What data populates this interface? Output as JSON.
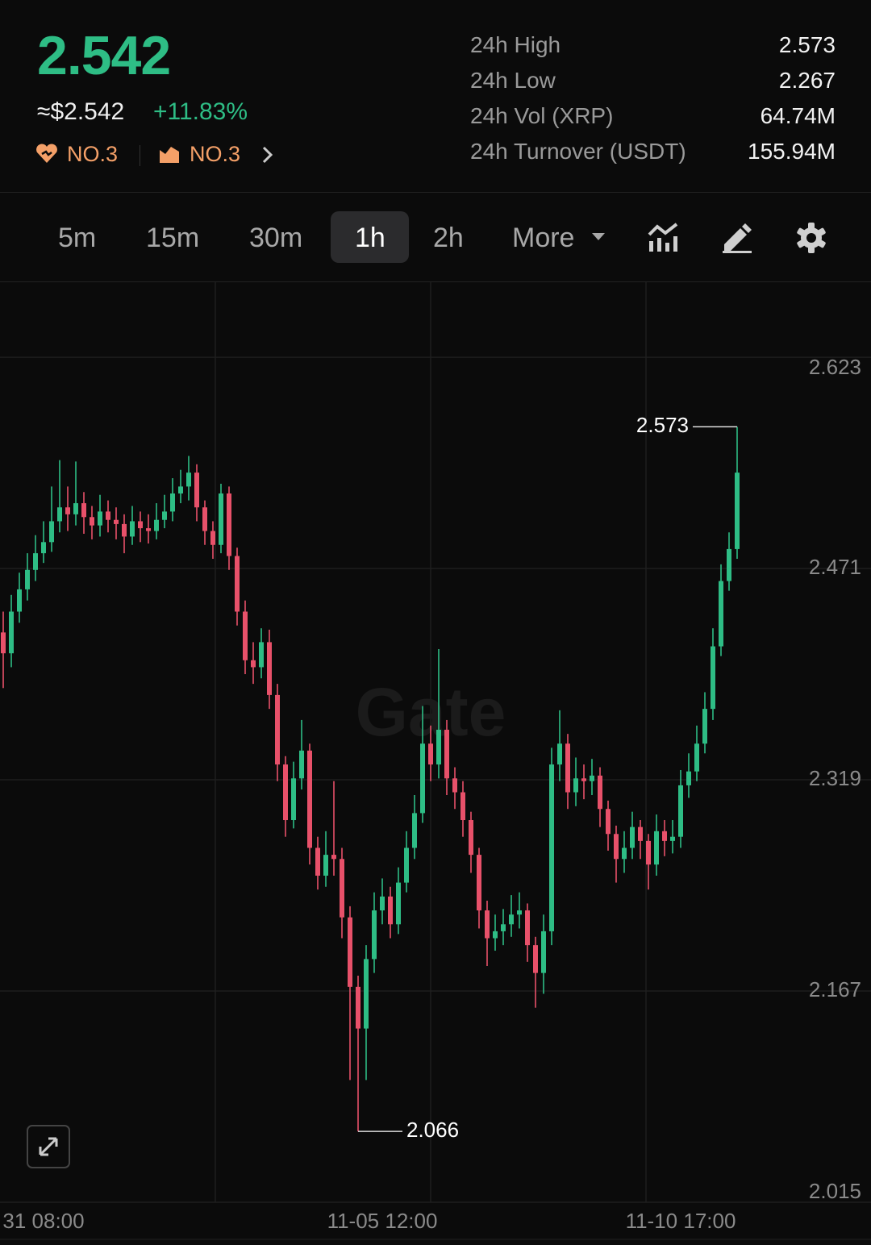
{
  "header": {
    "price": "2.542",
    "price_usd": "≈$2.542",
    "change": "+11.83%",
    "rank_badges": [
      "NO.3",
      "NO.3"
    ]
  },
  "stats": [
    {
      "label": "24h High",
      "value": "2.573"
    },
    {
      "label": "24h Low",
      "value": "2.267"
    },
    {
      "label": "24h Vol (XRP)",
      "value": "64.74M"
    },
    {
      "label": "24h Turnover (USDT)",
      "value": "155.94M"
    }
  ],
  "tabs": [
    "5m",
    "15m",
    "30m",
    "1h",
    "2h",
    "More"
  ],
  "active_tab_index": 3,
  "chart_data": {
    "type": "candlestick",
    "watermark": "Gate",
    "up_color": "#2ebd85",
    "down_color": "#e8516a",
    "grid": true,
    "ylim": [
      2.015,
      2.677
    ],
    "yticks": [
      2.623,
      2.471,
      2.319,
      2.167,
      2.015
    ],
    "xticks": [
      {
        "value": 5,
        "label": "31 08:00"
      },
      {
        "value": 47,
        "label": "11-05 12:00"
      },
      {
        "value": 84,
        "label": "11-10 17:00"
      }
    ],
    "max_label": 2.573,
    "min_label": 2.066,
    "open": [
      2.425,
      2.41,
      2.44,
      2.456,
      2.47,
      2.482,
      2.49,
      2.505,
      2.515,
      2.51,
      2.518,
      2.508,
      2.502,
      2.512,
      2.506,
      2.503,
      2.494,
      2.505,
      2.5,
      2.498,
      2.506,
      2.512,
      2.525,
      2.53,
      2.54,
      2.515,
      2.498,
      2.488,
      2.525,
      2.48,
      2.44,
      2.405,
      2.4,
      2.418,
      2.38,
      2.33,
      2.29,
      2.32,
      2.34,
      2.27,
      2.25,
      2.265,
      2.262,
      2.22,
      2.17,
      2.14,
      2.19,
      2.225,
      2.235,
      2.215,
      2.245,
      2.27,
      2.295,
      2.345,
      2.33,
      2.355,
      2.32,
      2.31,
      2.29,
      2.265,
      2.225,
      2.205,
      2.21,
      2.215,
      2.222,
      2.225,
      2.2,
      2.18,
      2.21,
      2.33,
      2.345,
      2.31,
      2.32,
      2.318,
      2.322,
      2.298,
      2.28,
      2.262,
      2.27,
      2.285,
      2.275,
      2.258,
      2.282,
      2.275,
      2.278,
      2.315,
      2.325,
      2.345,
      2.37,
      2.415,
      2.462,
      2.485
    ],
    "high": [
      2.44,
      2.452,
      2.468,
      2.482,
      2.495,
      2.505,
      2.53,
      2.549,
      2.53,
      2.548,
      2.526,
      2.516,
      2.524,
      2.52,
      2.515,
      2.51,
      2.516,
      2.512,
      2.51,
      2.518,
      2.524,
      2.536,
      2.542,
      2.552,
      2.546,
      2.52,
      2.505,
      2.532,
      2.53,
      2.486,
      2.448,
      2.418,
      2.428,
      2.427,
      2.388,
      2.336,
      2.332,
      2.362,
      2.345,
      2.278,
      2.282,
      2.318,
      2.27,
      2.228,
      2.178,
      2.2,
      2.238,
      2.248,
      2.242,
      2.256,
      2.282,
      2.308,
      2.372,
      2.358,
      2.413,
      2.362,
      2.328,
      2.318,
      2.296,
      2.27,
      2.232,
      2.222,
      2.226,
      2.236,
      2.238,
      2.23,
      2.206,
      2.222,
      2.342,
      2.369,
      2.352,
      2.335,
      2.33,
      2.334,
      2.328,
      2.304,
      2.286,
      2.282,
      2.296,
      2.29,
      2.28,
      2.294,
      2.29,
      2.29,
      2.326,
      2.338,
      2.358,
      2.382,
      2.428,
      2.474,
      2.497,
      2.573
    ],
    "low": [
      2.385,
      2.4,
      2.432,
      2.448,
      2.462,
      2.475,
      2.483,
      2.497,
      2.498,
      2.502,
      2.496,
      2.492,
      2.494,
      2.497,
      2.492,
      2.482,
      2.488,
      2.49,
      2.489,
      2.492,
      2.5,
      2.505,
      2.518,
      2.52,
      2.505,
      2.488,
      2.478,
      2.482,
      2.47,
      2.43,
      2.395,
      2.388,
      2.392,
      2.37,
      2.318,
      2.278,
      2.284,
      2.312,
      2.258,
      2.24,
      2.242,
      2.25,
      2.205,
      2.103,
      2.066,
      2.103,
      2.18,
      2.215,
      2.205,
      2.208,
      2.238,
      2.262,
      2.288,
      2.318,
      2.32,
      2.308,
      2.298,
      2.278,
      2.252,
      2.212,
      2.185,
      2.196,
      2.2,
      2.206,
      2.212,
      2.188,
      2.155,
      2.165,
      2.2,
      2.318,
      2.298,
      2.3,
      2.305,
      2.308,
      2.285,
      2.268,
      2.245,
      2.252,
      2.262,
      2.262,
      2.24,
      2.25,
      2.264,
      2.266,
      2.27,
      2.306,
      2.318,
      2.338,
      2.362,
      2.408,
      2.455,
      2.478
    ],
    "close": [
      2.41,
      2.44,
      2.456,
      2.47,
      2.482,
      2.49,
      2.505,
      2.515,
      2.51,
      2.518,
      2.508,
      2.502,
      2.512,
      2.506,
      2.503,
      2.494,
      2.505,
      2.5,
      2.498,
      2.506,
      2.512,
      2.525,
      2.53,
      2.54,
      2.515,
      2.498,
      2.488,
      2.525,
      2.48,
      2.44,
      2.405,
      2.4,
      2.418,
      2.38,
      2.33,
      2.29,
      2.32,
      2.34,
      2.27,
      2.25,
      2.265,
      2.262,
      2.22,
      2.17,
      2.14,
      2.19,
      2.225,
      2.235,
      2.215,
      2.245,
      2.27,
      2.295,
      2.345,
      2.33,
      2.355,
      2.32,
      2.31,
      2.29,
      2.265,
      2.225,
      2.205,
      2.21,
      2.215,
      2.222,
      2.225,
      2.2,
      2.18,
      2.21,
      2.33,
      2.345,
      2.31,
      2.32,
      2.318,
      2.322,
      2.298,
      2.28,
      2.262,
      2.27,
      2.285,
      2.275,
      2.258,
      2.282,
      2.275,
      2.278,
      2.315,
      2.325,
      2.345,
      2.37,
      2.415,
      2.462,
      2.485,
      2.54
    ]
  }
}
